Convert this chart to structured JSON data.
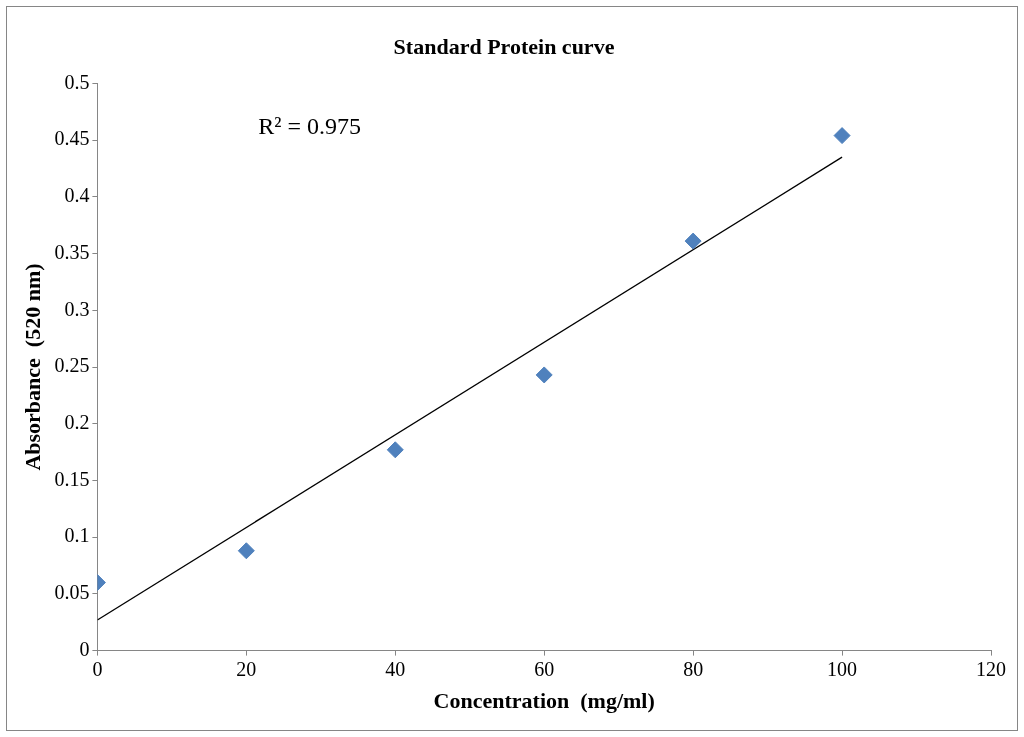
{
  "chart_data": {
    "type": "scatter",
    "title": "Standard Protein curve",
    "xlabel": "Concentration  (mg/ml)",
    "ylabel": "Absorbance  (520 nm)",
    "x": [
      0,
      20,
      40,
      60,
      80,
      100
    ],
    "series": [
      {
        "color": "#4f81bd",
        "marker": "diamond",
        "values": [
          0.06,
          0.088,
          0.177,
          0.243,
          0.361,
          0.454
        ]
      },
      {
        "type": "line",
        "color": "#000000",
        "marker": "none",
        "line_style": "solid",
        "x": [
          0,
          100
        ],
        "values": [
          0.027,
          0.435
        ]
      }
    ],
    "xlim": [
      0,
      120
    ],
    "xticks": [
      0,
      20,
      40,
      60,
      80,
      100,
      120
    ],
    "ylim": [
      0,
      0.5
    ],
    "yticks": [
      0,
      0.05,
      0.1,
      0.15,
      0.2,
      0.25,
      0.3,
      0.35,
      0.4,
      0.45,
      0.5
    ],
    "grid": false,
    "legend": false,
    "annotations": [
      "R² = 0.975"
    ]
  }
}
